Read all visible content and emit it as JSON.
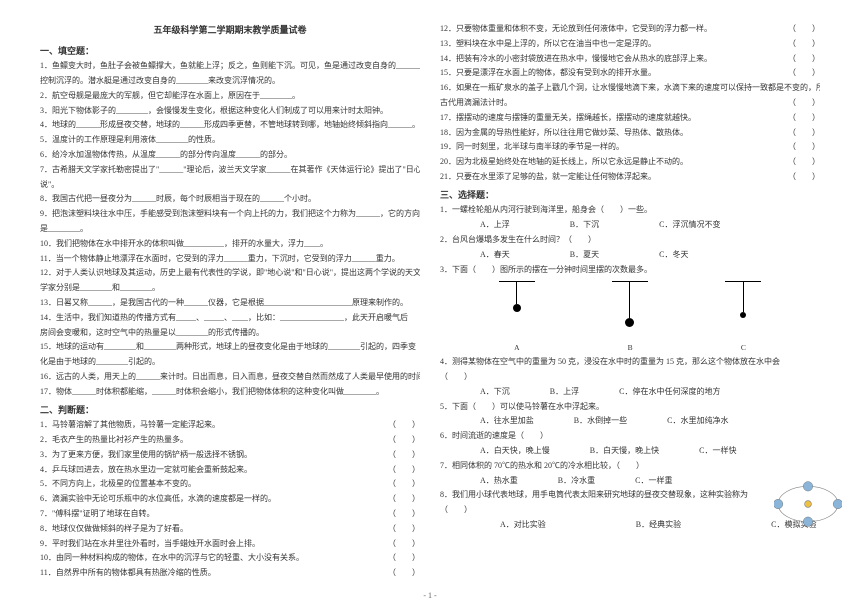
{
  "title": "五年级科学第二学期期末教学质量试卷",
  "sec1": "一、填空题：",
  "sec2": "二、判断题：",
  "sec3": "三、选择题：",
  "left": {
    "f1": "1．鱼鳔变大时，鱼肚子会被鱼鳔撑大，鱼就能上浮；反之，鱼则能下沉。可见，鱼是通过改变自身的________来",
    "f1b": "控制沉浮的。潜水艇是通过改变自身的________来改变沉浮情况的。",
    "f2": "2．航空母舰是最庞大的军舰，但它却能浮在水面上，原因在于________。",
    "f3": "3．阳光下物体影子的________，会慢慢发生变化，根据这种变化人们制成了可以用来计时太阳钟。",
    "f4": "4．地球的______形成昼夜交替，地球的______形成四季更替，不管地球转到哪，地轴始终倾斜指向______。",
    "f5": "5．温度计的工作原理是利用液体________的性质。",
    "f6": "6．给冷水加温物体传热，从温度______的部分传向温度______的部分。",
    "f7": "7．古希腊天文学家托勒密提出了\"______\"理论后，波兰天文学家______在其著作《天体运行论》提出了\"日心",
    "f7b": "说\"。",
    "f8": "8．我国古代把一昼夜分为______时辰，每个时辰相当于现在的______个小时。",
    "f9": "9．把泡沫塑料块往水中压，手能感受到泡沫塑料块有一个向上托的力，我们把这个力称为______，它的方向",
    "f9b": "是________。",
    "f10": "10．我们把物体在水中排开水的体积叫做__________，排开的水量大，浮力____。",
    "f11": "11．当一个物体静止地漂浮在水面时，它受到的浮力______重力，下沉时，它受到的浮力______重力。",
    "f12": "12．对于人类认识地球及其运动，历史上最有代表性的学说，即\"地心说\"和\"日心说\"，提出这两个学说的天文",
    "f12b": "学家分别是________和________。",
    "f13": "13．日晷又称______，是我国古代的一种______仪器，它是根据______________________原理来制作的。",
    "f14": "14．生活中，我们知道热的传播方式有_____、_____、____，比如：________________，此天开启暖气后",
    "f14b": "房间会变暖和，这时空气中的热量是以________的形式传播的。",
    "f15": "15．地球的运动有________和________两种形式，地球上的昼夜变化是由于地球的________引起的，四季变",
    "f15b": "化是由于地球的________引起的。",
    "f16": "16．远古的人类，用天上的______来计时。日出而息，日入而息，昼夜交替自然而然成了人类最早使用的时间单位——",
    "f17": "17．物体______时体积都能缩，______时体积会缩小，我们把物体体积的这种变化叫做________。",
    "j1": "1．马铃薯溶解了其他物质，马铃薯一定能浮起来。",
    "j2": "2．毛衣产生的热量比衬衫产生的热量多。",
    "j3": "3．为了更来方便，我们家里使用的锅铲柄一般选择不锈钢。",
    "j4": "4．乒乓球凹进去，放在热水里边一定就可能会重新鼓起来。",
    "j5": "5．不同方向上，北极星的位置基本不变的。",
    "j6": "6．滴漏实验中无论可乐瓶中的水位高低，水滴的速度都是一样的。",
    "j7": "7．\"傅科摆\"证明了地球在自转。",
    "j8": "8．地球仪仅做做倾斜的样子是为了好看。",
    "j9": "9．平时我们站在水井里往外看时，当手蜡烛开水面时会上排。",
    "j10": "10．由同一种材料构成的物体，在水中的沉浮与它的轻重、大小没有关系。",
    "j11": "11．自然界中所有的物体都具有热胀冷缩的性质。"
  },
  "right": {
    "j12": "12．只要物体重量和体积不变，无论放到任何液体中，它受到的浮力都一样。",
    "j13": "13．塑料块在水中是上浮的，所以它在油当中也一定是浮的。",
    "j14": "14．把装有冷水的小密封袋放进在热水中，慢慢地它会从热水的底部浮上来。",
    "j15": "15．只要是漂浮在水面上的物体，都没有受到水的排开水量。",
    "j16": "16．如果在一瓶矿泉水的盖子上戳几个洞，让水慢慢地滴下来，水滴下来的速度可以保持一致都是不变的，所以",
    "j16b": "古代用滴漏法计时。",
    "j17": "17．摆摆动的速度与摆锤的重量无关，摆绳越长，摆摆动的速度就越快。",
    "j18": "18．因为金属的导热性能好，所以往往用它做炒菜、导热体、散热体。",
    "j19": "19．同一时刻里，北半球与南半球的季节是一样的。",
    "j20": "20．因为北极星始终处在地轴的延长线上，所以它永远是静止不动的。",
    "j21": "21．只要在水里添了足够的盐，就一定能让任何物体浮起来。",
    "s1": "1．一螺栓轮船从内河行驶到海洋里，船身会（　　）一些。",
    "s1o": {
      "a": "A．上浮",
      "b": "B．下沉",
      "c": "C．浮沉情况不变"
    },
    "s2": "2．台风台爆塌多发生在什么时间？（　　）",
    "s2o": {
      "a": "A．春天",
      "b": "B．夏天",
      "c": "C．冬天"
    },
    "s3": "3．下面（　　）图所示的摆在一分钟时间里摆的次数最多。",
    "abc": {
      "a": "A",
      "b": "B",
      "c": "C"
    },
    "s4": "4．测得某物体在空气中的重量为 50 克，浸没在水中时的重量为 15 克，那么这个物体放在水中会",
    "s4b": "（　　）",
    "s4o": {
      "a": "A．下沉",
      "b": "B．上浮",
      "c": "C．停在水中任何深度的地方"
    },
    "s5": "5．下面（　　）可以使马铃薯在水中浮起来。",
    "s5o": {
      "a": "A．往水里加盐",
      "b": "B．水倒掉一些",
      "c": "C．水里加纯净水"
    },
    "s6": "6．时间流逝的速度是（　　）",
    "s6o": {
      "a": "A．白天快，晚上慢",
      "b": "B．白天慢，晚上快",
      "c": "C．一样快"
    },
    "s7": "7．相同体积的 70℃的热水和 20℃的冷水相比较，（　　）",
    "s7o": {
      "a": "A．热水重",
      "b": "B．冷水重",
      "c": "C．一样重"
    },
    "s8": "8．我们用小球代表地球，用手电筒代表太阳来研究地球的昼夜交替现象，这种实验称为",
    "s8b": "（　　）",
    "s8o": {
      "a": "A．对比实验",
      "b": "B．经典实验",
      "c": "C．模拟实验"
    }
  },
  "pendulums": [
    {
      "string": 22,
      "bob": 8
    },
    {
      "string": 36,
      "bob": 9
    },
    {
      "string": 30,
      "bob": 6
    }
  ],
  "pn": "（　　）",
  "foot": "- 1 -"
}
